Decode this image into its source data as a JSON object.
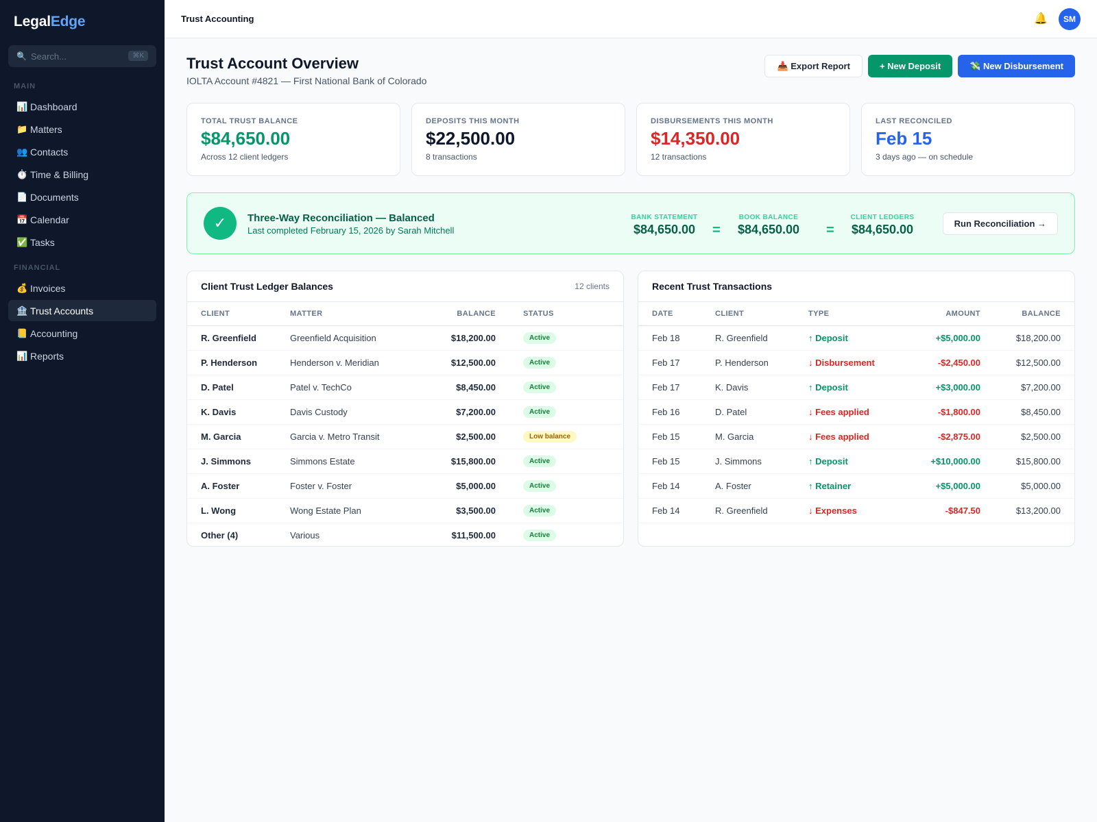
{
  "sidebar": {
    "logo_a": "Legal",
    "logo_b": "Edge",
    "search_placeholder": "Search...",
    "search_shortcut": "⌘K",
    "section_main": "MAIN",
    "main_items": [
      {
        "label": "Dashboard",
        "icon": "📊"
      },
      {
        "label": "Matters",
        "icon": "📁"
      },
      {
        "label": "Contacts",
        "icon": "👥"
      },
      {
        "label": "Time & Billing",
        "icon": "⏱️"
      },
      {
        "label": "Documents",
        "icon": "📄"
      },
      {
        "label": "Calendar",
        "icon": "📅"
      },
      {
        "label": "Tasks",
        "icon": "✅"
      }
    ],
    "section_financial": "FINANCIAL",
    "financial_items": [
      {
        "label": "Invoices",
        "icon": "💰"
      },
      {
        "label": "Trust Accounts",
        "icon": "🏦"
      },
      {
        "label": "Accounting",
        "icon": "📒"
      },
      {
        "label": "Reports",
        "icon": "📊"
      }
    ]
  },
  "topbar": {
    "title": "Trust Accounting",
    "bell_icon": "🔔",
    "avatar_initials": "SM"
  },
  "header": {
    "title": "Trust Account Overview",
    "subtitle": "IOLTA Account #4821 — First National Bank of Colorado",
    "export_label": "📥 Export Report",
    "deposit_label": "+ New Deposit",
    "disbursement_label": "💸 New Disbursement"
  },
  "stats": [
    {
      "label": "TOTAL TRUST BALANCE",
      "value": "$84,650.00",
      "sub": "Across 12 client ledgers",
      "color": "#059669"
    },
    {
      "label": "DEPOSITS THIS MONTH",
      "value": "$22,500.00",
      "sub": "8 transactions",
      "color": "#0f172a"
    },
    {
      "label": "DISBURSEMENTS THIS MONTH",
      "value": "$14,350.00",
      "sub": "12 transactions",
      "color": "#dc2626"
    },
    {
      "label": "LAST RECONCILED",
      "value": "Feb 15",
      "sub": "3 days ago — on schedule",
      "color": "#2563eb"
    }
  ],
  "reconciliation": {
    "check_icon": "✓",
    "title": "Three-Way Reconciliation — Balanced",
    "subtitle": "Last completed February 15, 2026 by Sarah Mitchell",
    "bank_label": "BANK STATEMENT",
    "bank_value": "$84,650.00",
    "book_label": "BOOK BALANCE",
    "book_value": "$84,650.00",
    "ledgers_label": "CLIENT LEDGERS",
    "ledgers_value": "$84,650.00",
    "equals": "=",
    "run_label": "Run Reconciliation →"
  },
  "ledger": {
    "title": "Client Trust Ledger Balances",
    "count": "12 clients",
    "columns": [
      "CLIENT",
      "MATTER",
      "BALANCE",
      "STATUS"
    ],
    "rows": [
      {
        "client": "R. Greenfield",
        "matter": "Greenfield Acquisition",
        "balance": "$18,200.00",
        "status": "Active",
        "low": false
      },
      {
        "client": "P. Henderson",
        "matter": "Henderson v. Meridian",
        "balance": "$12,500.00",
        "status": "Active",
        "low": false
      },
      {
        "client": "D. Patel",
        "matter": "Patel v. TechCo",
        "balance": "$8,450.00",
        "status": "Active",
        "low": false
      },
      {
        "client": "K. Davis",
        "matter": "Davis Custody",
        "balance": "$7,200.00",
        "status": "Active",
        "low": false
      },
      {
        "client": "M. Garcia",
        "matter": "Garcia v. Metro Transit",
        "balance": "$2,500.00",
        "status": "Low balance",
        "low": true
      },
      {
        "client": "J. Simmons",
        "matter": "Simmons Estate",
        "balance": "$15,800.00",
        "status": "Active",
        "low": false
      },
      {
        "client": "A. Foster",
        "matter": "Foster v. Foster",
        "balance": "$5,000.00",
        "status": "Active",
        "low": false
      },
      {
        "client": "L. Wong",
        "matter": "Wong Estate Plan",
        "balance": "$3,500.00",
        "status": "Active",
        "low": false
      },
      {
        "client": "Other (4)",
        "matter": "Various",
        "balance": "$11,500.00",
        "status": "Active",
        "low": false
      }
    ]
  },
  "transactions": {
    "title": "Recent Trust Transactions",
    "columns": [
      "DATE",
      "CLIENT",
      "TYPE",
      "AMOUNT",
      "BALANCE"
    ],
    "rows": [
      {
        "date": "Feb 18",
        "client": "R. Greenfield",
        "type": "↑ Deposit",
        "amount": "+$5,000.00",
        "balance": "$18,200.00",
        "dir": "in"
      },
      {
        "date": "Feb 17",
        "client": "P. Henderson",
        "type": "↓ Disbursement",
        "amount": "-$2,450.00",
        "balance": "$12,500.00",
        "dir": "out"
      },
      {
        "date": "Feb 17",
        "client": "K. Davis",
        "type": "↑ Deposit",
        "amount": "+$3,000.00",
        "balance": "$7,200.00",
        "dir": "in"
      },
      {
        "date": "Feb 16",
        "client": "D. Patel",
        "type": "↓ Fees applied",
        "amount": "-$1,800.00",
        "balance": "$8,450.00",
        "dir": "out"
      },
      {
        "date": "Feb 15",
        "client": "M. Garcia",
        "type": "↓ Fees applied",
        "amount": "-$2,875.00",
        "balance": "$2,500.00",
        "dir": "out"
      },
      {
        "date": "Feb 15",
        "client": "J. Simmons",
        "type": "↑ Deposit",
        "amount": "+$10,000.00",
        "balance": "$15,800.00",
        "dir": "in"
      },
      {
        "date": "Feb 14",
        "client": "A. Foster",
        "type": "↑ Retainer",
        "amount": "+$5,000.00",
        "balance": "$5,000.00",
        "dir": "in"
      },
      {
        "date": "Feb 14",
        "client": "R. Greenfield",
        "type": "↓ Expenses",
        "amount": "-$847.50",
        "balance": "$13,200.00",
        "dir": "out"
      }
    ]
  }
}
